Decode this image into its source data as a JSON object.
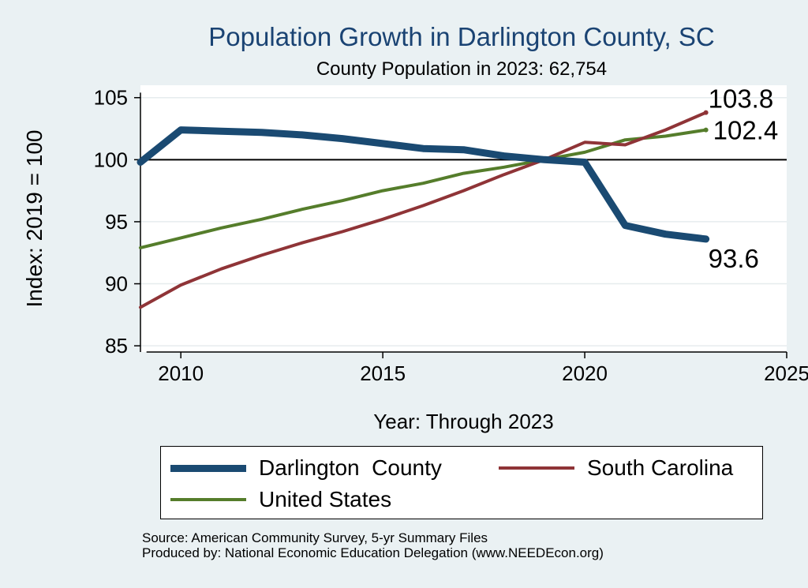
{
  "chart_data": {
    "type": "line",
    "title": "Population Growth in Darlington County, SC",
    "subtitle": "County Population in 2023: 62,754",
    "xlabel": "Year: Through 2023",
    "ylabel": "Index: 2019 = 100",
    "xlim": [
      2009,
      2025
    ],
    "ylim": [
      84.5,
      106
    ],
    "x_ticks": [
      2010,
      2015,
      2020,
      2025
    ],
    "y_ticks": [
      85,
      90,
      95,
      100,
      105
    ],
    "reference_line": 100,
    "grid": true,
    "legend_position": "bottom",
    "x": [
      2009,
      2010,
      2011,
      2012,
      2013,
      2014,
      2015,
      2016,
      2017,
      2018,
      2019,
      2020,
      2021,
      2022,
      2023
    ],
    "series": [
      {
        "name": "Darlington  County",
        "color": "#1a4a72",
        "width": 9,
        "values": [
          99.8,
          102.4,
          102.3,
          102.2,
          102.0,
          101.7,
          101.3,
          100.9,
          100.8,
          100.3,
          100.0,
          99.8,
          94.7,
          94.0,
          93.6
        ],
        "end_label": "93.6"
      },
      {
        "name": "South Carolina",
        "color": "#8f3437",
        "width": 4,
        "values": [
          88.1,
          89.9,
          91.2,
          92.3,
          93.3,
          94.2,
          95.2,
          96.3,
          97.5,
          98.8,
          100.0,
          101.4,
          101.2,
          102.4,
          103.8
        ],
        "end_label": "103.8"
      },
      {
        "name": "United States",
        "color": "#557d2b",
        "width": 4,
        "values": [
          92.9,
          93.7,
          94.5,
          95.2,
          96.0,
          96.7,
          97.5,
          98.1,
          98.9,
          99.4,
          100.0,
          100.6,
          101.6,
          101.9,
          102.4
        ],
        "end_label": "102.4"
      }
    ]
  },
  "source_line1": "Source: American Community Survey, 5-yr Summary Files",
  "source_line2": "Produced by: National Economic Education Delegation (www.NEEDEcon.org)"
}
